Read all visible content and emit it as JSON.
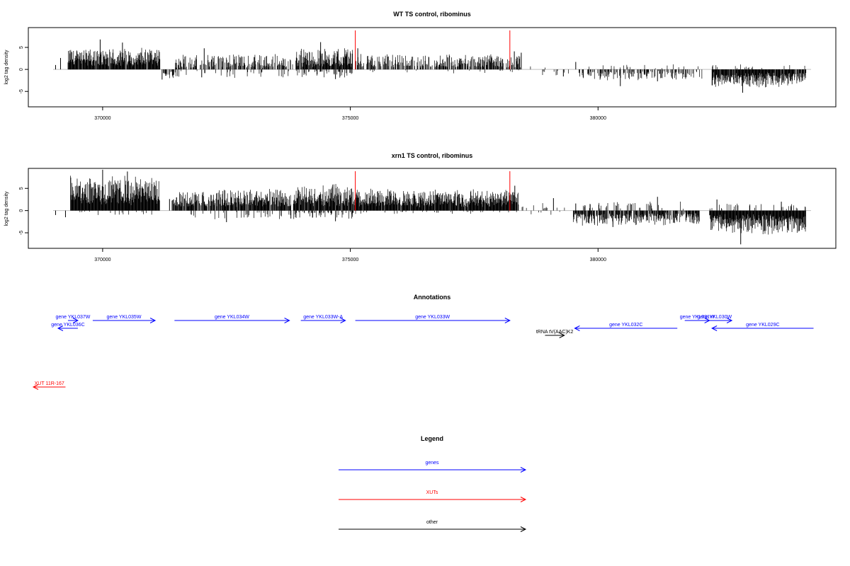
{
  "chart_data": [
    {
      "type": "bar",
      "id": "wt",
      "title": "WT TS control, ribominus",
      "ylabel": "log2 tag density",
      "xlim": [
        368500,
        384800
      ],
      "ylim": [
        -8.5,
        9.5
      ],
      "xticks": [
        370000,
        375000,
        380000
      ],
      "xtick_labels": [
        "370000",
        "375000",
        "380000"
      ],
      "yticks": [
        -5,
        0,
        5
      ],
      "ytick_labels": [
        "-5",
        "0",
        "5"
      ],
      "marker_lines": [
        375100,
        378220
      ],
      "marker_color": "#ff0000",
      "bar_color": "#000000",
      "baseline_color": "#bfbfbf",
      "regions": [
        {
          "from": 369300,
          "to": 369380,
          "sign": 1,
          "density": 0.3,
          "base": 2.0,
          "amp": 0.5
        },
        {
          "from": 369300,
          "to": 371160,
          "sign": 1,
          "density": 0.95,
          "base": 1.5,
          "amp": 3.5
        },
        {
          "from": 371150,
          "to": 371500,
          "sign": -1,
          "density": 0.3,
          "base": 0.8,
          "amp": 1.5
        },
        {
          "from": 371450,
          "to": 373850,
          "sign": 1,
          "density": 0.55,
          "base": 0.8,
          "amp": 2.8
        },
        {
          "from": 371400,
          "to": 373800,
          "sign": -1,
          "density": 0.08,
          "base": 0.6,
          "amp": 1.4
        },
        {
          "from": 373900,
          "to": 375050,
          "sign": 1,
          "density": 0.9,
          "base": 1.2,
          "amp": 3.8
        },
        {
          "from": 373900,
          "to": 375050,
          "sign": -1,
          "density": 0.25,
          "base": 0.5,
          "amp": 1.4
        },
        {
          "from": 375100,
          "to": 378450,
          "sign": 1,
          "density": 0.6,
          "base": 0.8,
          "amp": 2.8
        },
        {
          "from": 375100,
          "to": 378400,
          "sign": -1,
          "density": 0.05,
          "base": 0.3,
          "amp": 0.6
        },
        {
          "from": 378500,
          "to": 379400,
          "sign": 1,
          "density": 0.05,
          "base": 0.5,
          "amp": 0.8
        },
        {
          "from": 378800,
          "to": 379500,
          "sign": -1,
          "density": 0.05,
          "base": 0.5,
          "amp": 1.0
        },
        {
          "from": 379600,
          "to": 382100,
          "sign": -1,
          "density": 0.4,
          "base": 0.8,
          "amp": 1.8
        },
        {
          "from": 379700,
          "to": 382100,
          "sign": 1,
          "density": 0.05,
          "base": 0.4,
          "amp": 0.8
        },
        {
          "from": 382300,
          "to": 384200,
          "sign": -1,
          "density": 0.95,
          "base": 1.5,
          "amp": 2.8
        },
        {
          "from": 382300,
          "to": 384200,
          "sign": 1,
          "density": 0.08,
          "base": 0.4,
          "amp": 0.9
        }
      ],
      "spikes": [
        {
          "x": 369050,
          "y": 1.0
        },
        {
          "x": 369150,
          "y": 2.6
        },
        {
          "x": 369950,
          "y": 6.8
        },
        {
          "x": 370400,
          "y": 6.1
        },
        {
          "x": 371200,
          "y": -2.3
        },
        {
          "x": 372000,
          "y": -1.8
        },
        {
          "x": 372050,
          "y": 4.8
        },
        {
          "x": 374400,
          "y": 6.2
        },
        {
          "x": 374700,
          "y": -2.2
        },
        {
          "x": 375150,
          "y": 4.8
        },
        {
          "x": 378310,
          "y": 4.1
        },
        {
          "x": 378450,
          "y": 3.8
        },
        {
          "x": 379300,
          "y": -1.6
        },
        {
          "x": 379550,
          "y": 1.7
        },
        {
          "x": 379700,
          "y": -1.8
        },
        {
          "x": 380450,
          "y": -3.8
        },
        {
          "x": 381200,
          "y": -2.7
        },
        {
          "x": 382920,
          "y": -5.3
        }
      ]
    },
    {
      "type": "bar",
      "id": "xrn1",
      "title": "xrn1 TS control, ribominus",
      "ylabel": "log2 tag density",
      "xlim": [
        368500,
        384800
      ],
      "ylim": [
        -8.5,
        9.5
      ],
      "xticks": [
        370000,
        375000,
        380000
      ],
      "xtick_labels": [
        "370000",
        "375000",
        "380000"
      ],
      "yticks": [
        -5,
        0,
        5
      ],
      "ytick_labels": [
        "-5",
        "0",
        "5"
      ],
      "marker_lines": [
        375100,
        378220
      ],
      "marker_color": "#ff0000",
      "bar_color": "#000000",
      "baseline_color": "#bfbfbf",
      "regions": [
        {
          "from": 369350,
          "to": 371150,
          "sign": 1,
          "density": 1.0,
          "base": 3.0,
          "amp": 5.0
        },
        {
          "from": 369350,
          "to": 371100,
          "sign": -1,
          "density": 0.05,
          "base": 0.4,
          "amp": 0.8
        },
        {
          "from": 371400,
          "to": 373800,
          "sign": 1,
          "density": 0.85,
          "base": 1.5,
          "amp": 3.5
        },
        {
          "from": 371400,
          "to": 373800,
          "sign": -1,
          "density": 0.1,
          "base": 0.5,
          "amp": 1.5
        },
        {
          "from": 373850,
          "to": 375050,
          "sign": 1,
          "density": 0.95,
          "base": 2.0,
          "amp": 4.0
        },
        {
          "from": 373850,
          "to": 375050,
          "sign": -1,
          "density": 0.3,
          "base": 0.5,
          "amp": 1.5
        },
        {
          "from": 375050,
          "to": 378400,
          "sign": 1,
          "density": 0.95,
          "base": 1.8,
          "amp": 3.2
        },
        {
          "from": 375050,
          "to": 378400,
          "sign": -1,
          "density": 0.08,
          "base": 0.3,
          "amp": 0.6
        },
        {
          "from": 378450,
          "to": 379350,
          "sign": 1,
          "density": 0.08,
          "base": 0.6,
          "amp": 1.2
        },
        {
          "from": 378450,
          "to": 379500,
          "sign": -1,
          "density": 0.06,
          "base": 0.4,
          "amp": 0.8
        },
        {
          "from": 379500,
          "to": 382050,
          "sign": -1,
          "density": 0.75,
          "base": 1.0,
          "amp": 2.5
        },
        {
          "from": 379500,
          "to": 382050,
          "sign": 1,
          "density": 0.12,
          "base": 0.6,
          "amp": 1.6
        },
        {
          "from": 382250,
          "to": 384200,
          "sign": -1,
          "density": 1.0,
          "base": 1.8,
          "amp": 3.8
        },
        {
          "from": 382250,
          "to": 384200,
          "sign": 1,
          "density": 0.1,
          "base": 0.5,
          "amp": 1.2
        }
      ],
      "spikes": [
        {
          "x": 369050,
          "y": -1.0
        },
        {
          "x": 369250,
          "y": -1.5
        },
        {
          "x": 370000,
          "y": 9.2
        },
        {
          "x": 370500,
          "y": 8.8
        },
        {
          "x": 371350,
          "y": 2.6
        },
        {
          "x": 372500,
          "y": -2.6
        },
        {
          "x": 373800,
          "y": -1.8
        },
        {
          "x": 374700,
          "y": -2.4
        },
        {
          "x": 375100,
          "y": 4.0
        },
        {
          "x": 378320,
          "y": 5.6
        },
        {
          "x": 379100,
          "y": 2.8
        },
        {
          "x": 379550,
          "y": 1.6
        },
        {
          "x": 380300,
          "y": -3.7
        },
        {
          "x": 381200,
          "y": 3.1
        },
        {
          "x": 382400,
          "y": 2.5
        },
        {
          "x": 382880,
          "y": -7.6
        },
        {
          "x": 383700,
          "y": 2.0
        }
      ]
    }
  ],
  "annotations": {
    "title": "Annotations",
    "features": [
      {
        "label": "gene YKL037W",
        "kind": "gene",
        "strand": "+",
        "start": 369300,
        "end": 369500,
        "row": 0
      },
      {
        "label": "gene YKL036C",
        "kind": "gene",
        "strand": "-",
        "start": 369100,
        "end": 369500,
        "row": 1
      },
      {
        "label": "gene YKL035W",
        "kind": "gene",
        "strand": "+",
        "start": 369800,
        "end": 371060,
        "row": 0
      },
      {
        "label": "gene YKL034W",
        "kind": "gene",
        "strand": "+",
        "start": 371450,
        "end": 373770,
        "row": 0
      },
      {
        "label": "gene YKL033W-A",
        "kind": "gene",
        "strand": "+",
        "start": 374000,
        "end": 374900,
        "row": 0
      },
      {
        "label": "gene YKL033W",
        "kind": "gene",
        "strand": "+",
        "start": 375100,
        "end": 378220,
        "row": 0
      },
      {
        "label": "tRNA tV(AAC)K2",
        "kind": "other",
        "strand": "+",
        "start": 378930,
        "end": 379320,
        "row": 2
      },
      {
        "label": "gene YKL032C",
        "kind": "gene",
        "strand": "-",
        "start": 379530,
        "end": 381600,
        "row": 1
      },
      {
        "label": "gene YKL031W",
        "kind": "gene",
        "strand": "+",
        "start": 381750,
        "end": 382250,
        "row": 0
      },
      {
        "label": "gene YKL030W",
        "kind": "gene",
        "strand": "+",
        "start": 382000,
        "end": 382700,
        "row": 0
      },
      {
        "label": "gene YKL029C",
        "kind": "gene",
        "strand": "-",
        "start": 382300,
        "end": 384350,
        "row": 1
      },
      {
        "label": "XUT 11R-167",
        "kind": "XUT",
        "strand": "-",
        "start": 368600,
        "end": 369250,
        "row": 3
      }
    ]
  },
  "legend": {
    "title": "Legend",
    "items": [
      {
        "label": "genes",
        "color": "#0000ff"
      },
      {
        "label": "XUTs",
        "color": "#ff0000"
      },
      {
        "label": "other",
        "color": "#000000"
      }
    ]
  },
  "colors": {
    "gene": "#0000ff",
    "XUT": "#ff0000",
    "other": "#000000"
  }
}
